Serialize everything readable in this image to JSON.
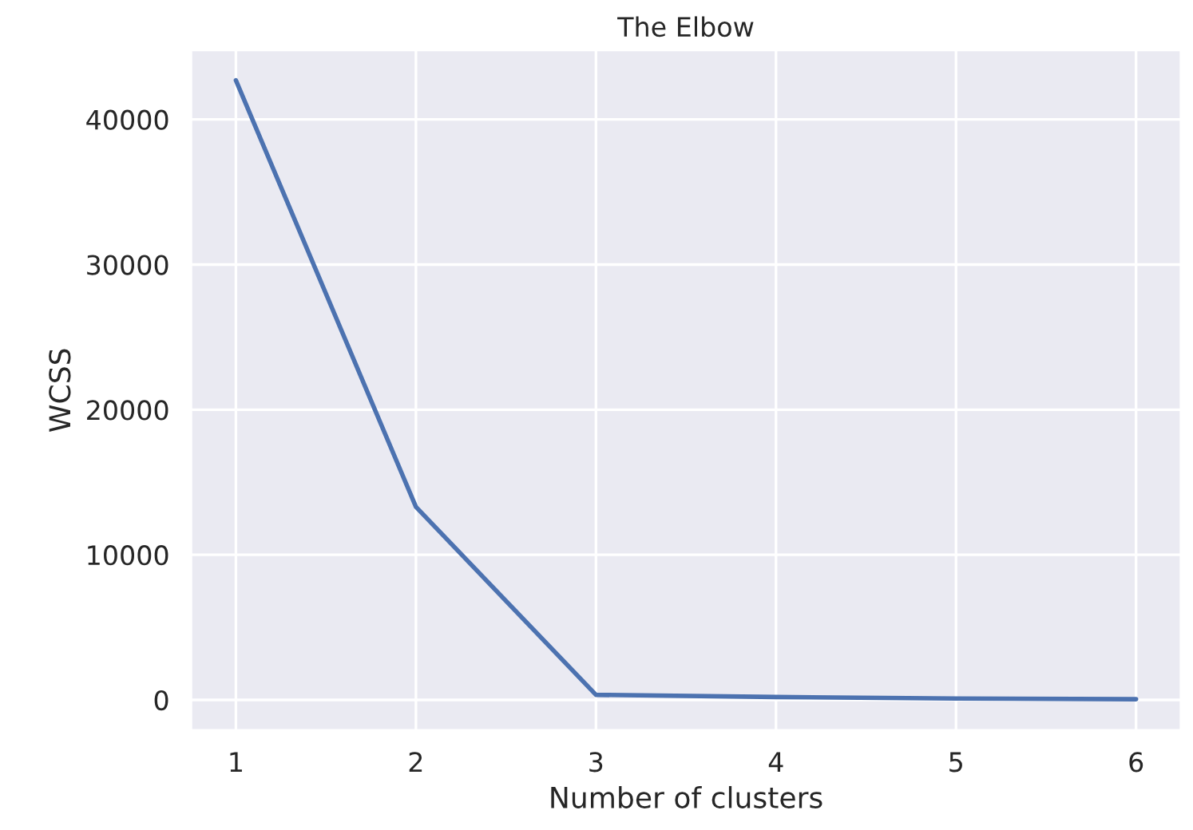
{
  "chart_data": {
    "type": "line",
    "title": "The Elbow",
    "xlabel": "Number of clusters",
    "ylabel": "WCSS",
    "x": [
      1,
      2,
      3,
      4,
      5,
      6
    ],
    "series": [
      {
        "color": "#4c72b0",
        "values": [
          42700,
          13300,
          350,
          200,
          100,
          50
        ]
      }
    ],
    "xlim": [
      0.75,
      6.25
    ],
    "xticks": [
      1,
      2,
      3,
      4,
      5,
      6
    ],
    "ylim": [
      -2100,
      44800
    ],
    "yticks": [
      0,
      10000,
      20000,
      30000,
      40000
    ],
    "grid": true
  }
}
